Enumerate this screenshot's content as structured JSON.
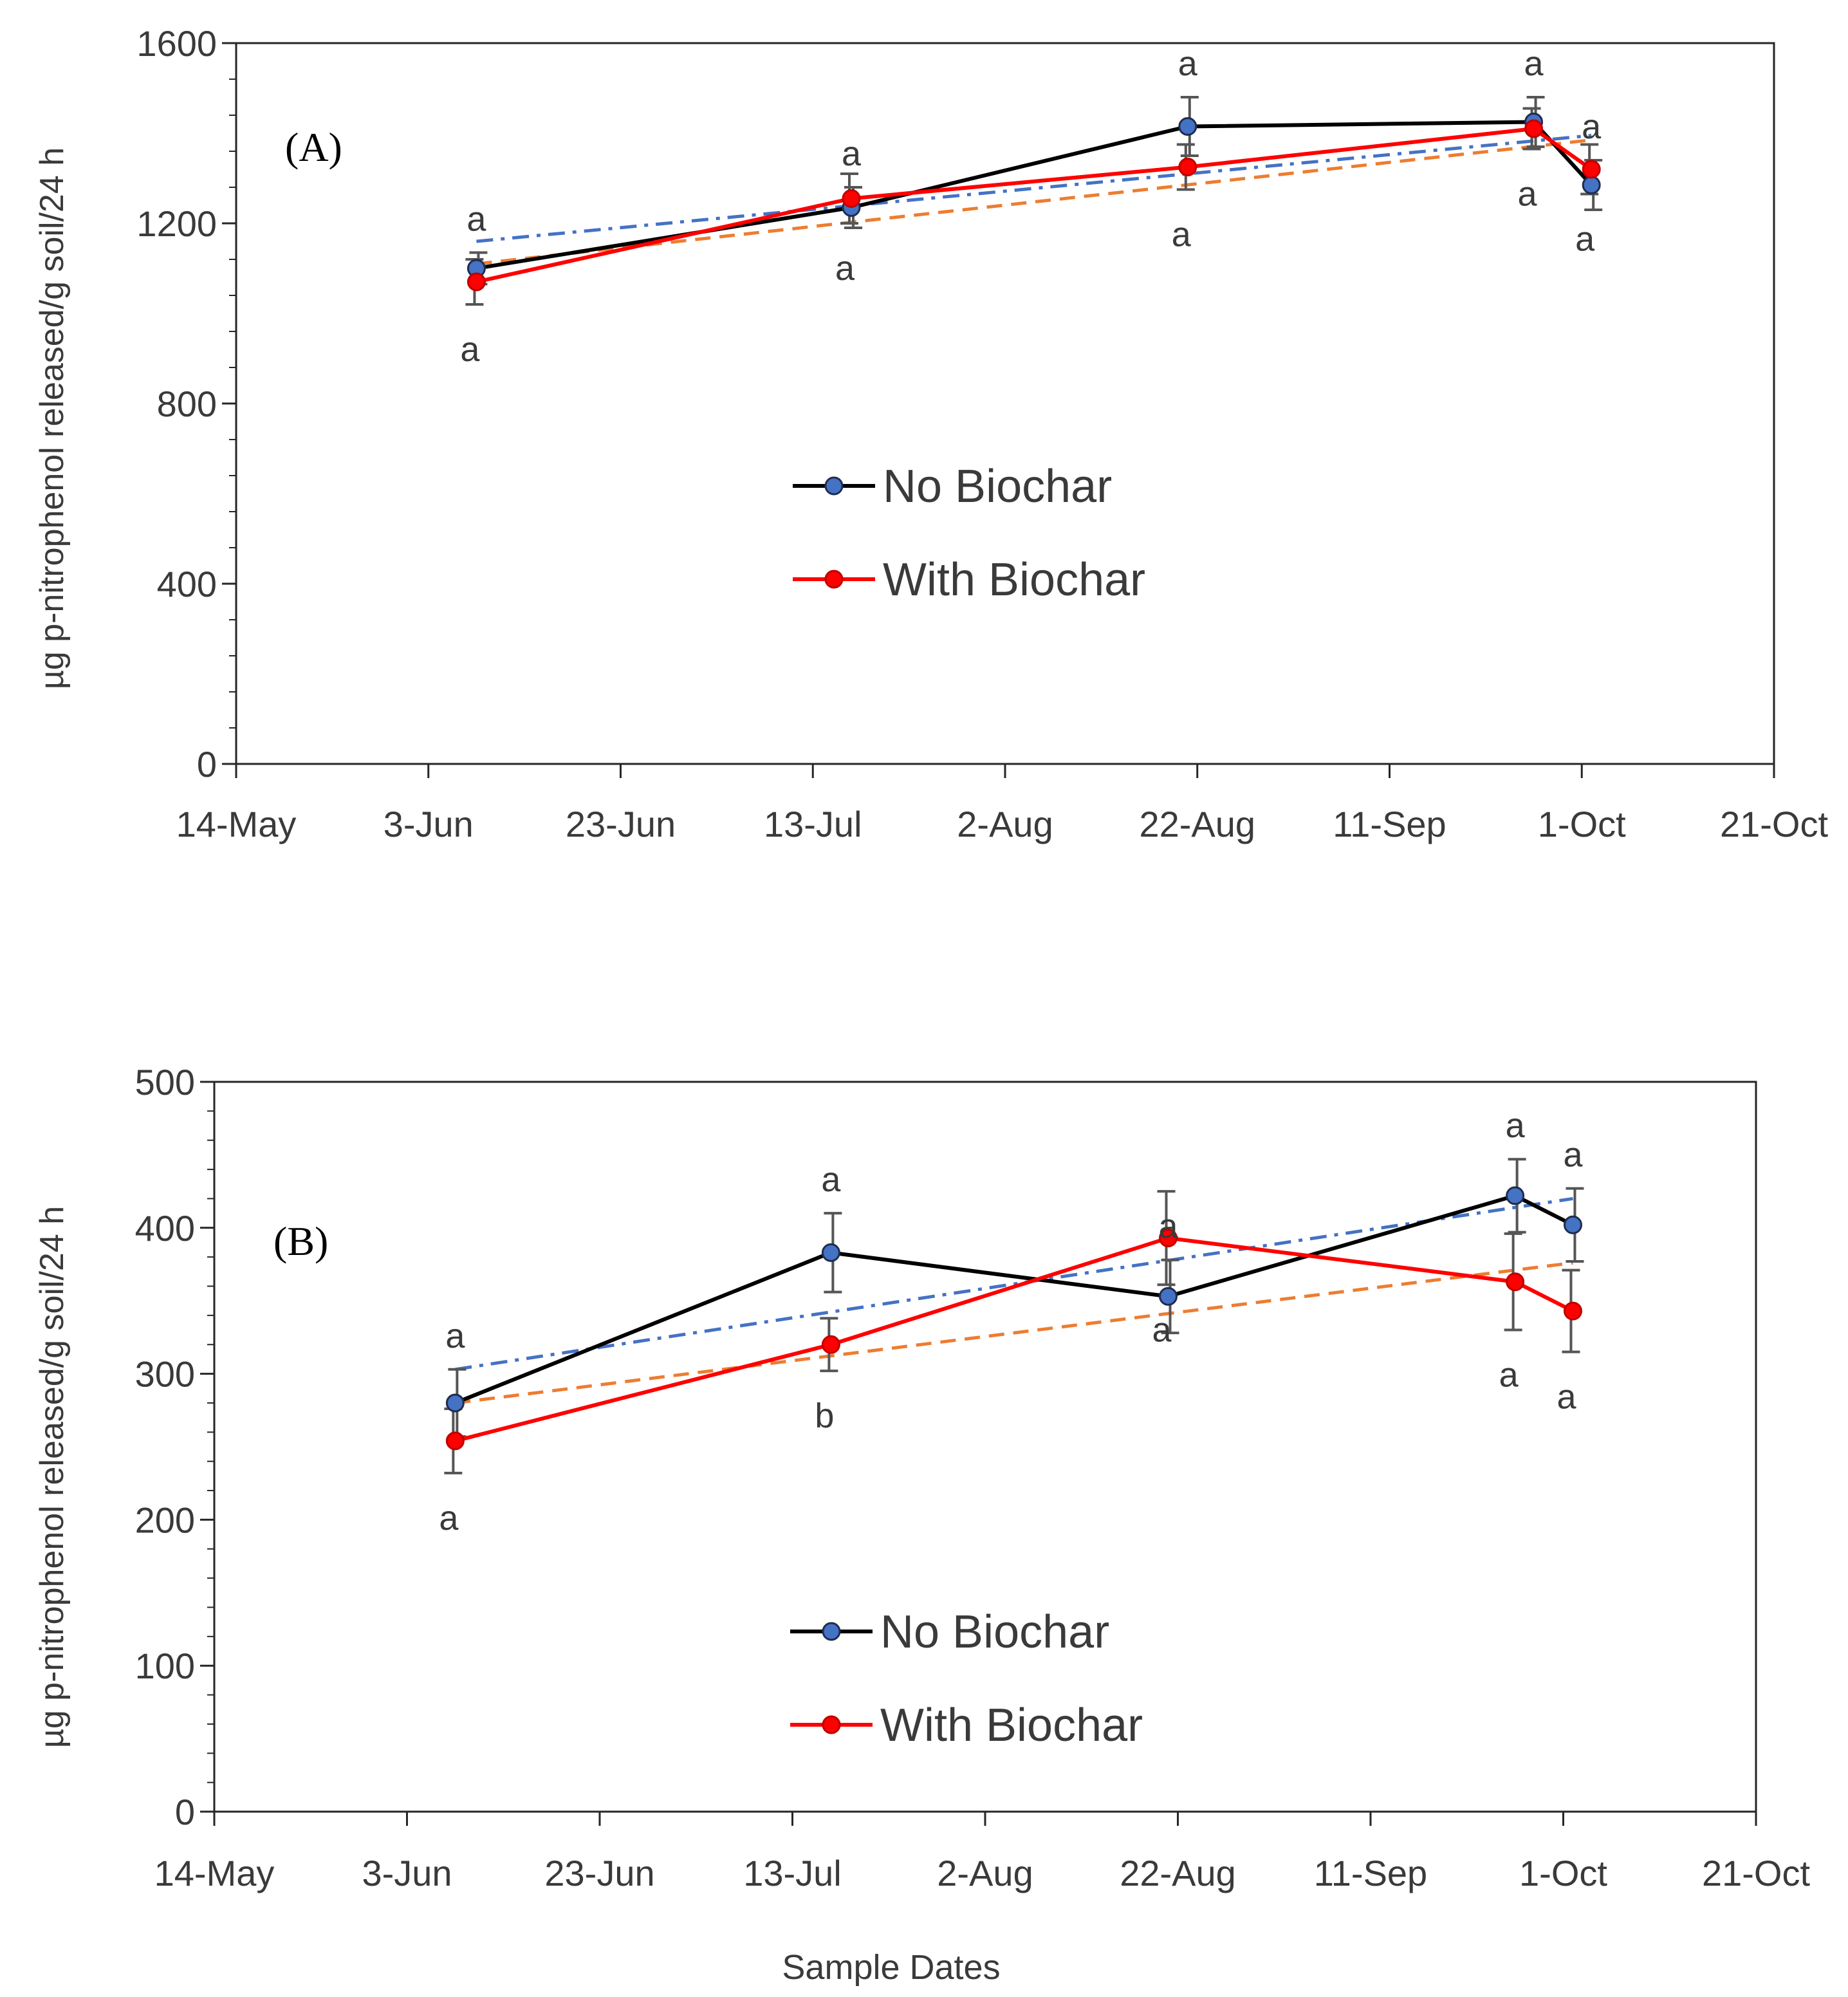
{
  "figure": {
    "y_axis_label": "µg p-nitrophenol  released/g soil/24 h",
    "x_axis_label": "Sample Dates"
  },
  "chart_data": [
    {
      "type": "line",
      "panel_label": "(A)",
      "ylim": [
        0,
        1600
      ],
      "yticks": [
        0,
        400,
        800,
        1200,
        1600
      ],
      "xticks": [
        "2019-05-14",
        "2019-06-03",
        "2019-06-23",
        "2019-07-13",
        "2019-08-02",
        "2019-08-22",
        "2019-09-11",
        "2019-10-01",
        "2019-10-21"
      ],
      "xtick_labels": [
        "14-May",
        "3-Jun",
        "23-Jun",
        "13-Jul",
        "2-Aug",
        "22-Aug",
        "11-Sep",
        "1-Oct",
        "21-Oct"
      ],
      "xlim": [
        "2019-05-14",
        "2019-10-21"
      ],
      "legend_position": "center",
      "grid": false,
      "series": [
        {
          "name": "No Biochar",
          "color": "#000000",
          "marker_color": "#4472c4",
          "x": [
            "2019-06-08",
            "2019-07-17",
            "2019-08-21",
            "2019-09-26",
            "2019-10-02"
          ],
          "y": [
            1100,
            1235,
            1415,
            1425,
            1285
          ],
          "error": [
            35,
            45,
            65,
            55,
            55
          ],
          "letters": [
            "a",
            "a",
            "a",
            "a",
            "a"
          ],
          "trend": {
            "color": "#4472c4",
            "style": "dash-dot",
            "x": [
              "2019-06-08",
              "2019-10-02"
            ],
            "y": [
              1160,
              1395
            ]
          }
        },
        {
          "name": "With Biochar",
          "color": "#ff0000",
          "marker_color": "#ff0000",
          "x": [
            "2019-06-08",
            "2019-07-17",
            "2019-08-21",
            "2019-09-26",
            "2019-10-02"
          ],
          "y": [
            1070,
            1255,
            1325,
            1410,
            1320
          ],
          "error": [
            50,
            55,
            50,
            45,
            55
          ],
          "letters": [
            "a",
            "a",
            "a",
            "a",
            "a"
          ],
          "trend": {
            "color": "#ed7d31",
            "style": "dash",
            "x": [
              "2019-06-08",
              "2019-10-02"
            ],
            "y": [
              1110,
              1385
            ]
          }
        }
      ]
    },
    {
      "type": "line",
      "panel_label": "(B)",
      "ylim": [
        0,
        500
      ],
      "yticks": [
        0,
        100,
        200,
        300,
        400,
        500
      ],
      "xticks": [
        "2019-05-14",
        "2019-06-03",
        "2019-06-23",
        "2019-07-13",
        "2019-08-02",
        "2019-08-22",
        "2019-09-11",
        "2019-10-01",
        "2019-10-21"
      ],
      "xtick_labels": [
        "14-May",
        "3-Jun",
        "23-Jun",
        "13-Jul",
        "2-Aug",
        "22-Aug",
        "11-Sep",
        "1-Oct",
        "21-Oct"
      ],
      "xlim": [
        "2019-05-14",
        "2019-10-21"
      ],
      "legend_position": "center-bottom",
      "grid": false,
      "series": [
        {
          "name": "No Biochar",
          "color": "#000000",
          "marker_color": "#4472c4",
          "x": [
            "2019-06-08",
            "2019-07-17",
            "2019-08-21",
            "2019-09-26",
            "2019-10-02"
          ],
          "y": [
            280,
            383,
            353,
            422,
            402
          ],
          "error": [
            23,
            27,
            25,
            25,
            25
          ],
          "letters": [
            "a",
            "a",
            "a",
            "a",
            "a"
          ],
          "trend": {
            "color": "#4472c4",
            "style": "dash-dot",
            "x": [
              "2019-06-08",
              "2019-10-02"
            ],
            "y": [
              303,
              420
            ]
          }
        },
        {
          "name": "With Biochar",
          "color": "#ff0000",
          "marker_color": "#ff0000",
          "x": [
            "2019-06-08",
            "2019-07-17",
            "2019-08-21",
            "2019-09-26",
            "2019-10-02"
          ],
          "y": [
            254,
            320,
            393,
            363,
            343
          ],
          "error": [
            22,
            18,
            32,
            33,
            28
          ],
          "letters": [
            "a",
            "b",
            "a",
            "a",
            "a"
          ],
          "trend": {
            "color": "#ed7d31",
            "style": "dash",
            "x": [
              "2019-06-08",
              "2019-10-02"
            ],
            "y": [
              280,
              376
            ]
          }
        }
      ]
    }
  ]
}
